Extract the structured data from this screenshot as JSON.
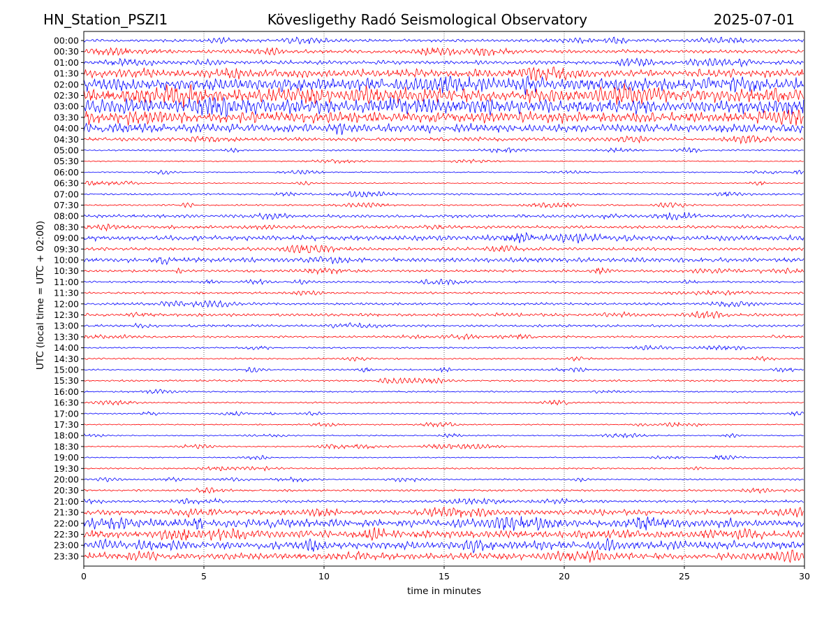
{
  "header": {
    "station": "HN_Station_PSZI1",
    "observatory": "Kövesligethy Radó Seismological Observatory",
    "date": "2025-07-01"
  },
  "chart_data": {
    "type": "line",
    "title": "Kövesligethy Radó Seismological Observatory",
    "xlabel": "time in minutes",
    "ylabel": "UTC (local time = UTC + 02:00)",
    "xlim": [
      0,
      30
    ],
    "x_ticks": [
      0,
      5,
      10,
      15,
      20,
      25,
      30
    ],
    "grid": "vertical dotted at x ticks",
    "colors": {
      "even_row": "#0000ff",
      "odd_row": "#ff0000"
    },
    "rows": [
      {
        "label": "00:00",
        "activity": 0.18
      },
      {
        "label": "00:30",
        "activity": 0.22
      },
      {
        "label": "01:00",
        "activity": 0.25
      },
      {
        "label": "01:30",
        "activity": 0.55
      },
      {
        "label": "02:00",
        "activity": 0.9
      },
      {
        "label": "02:30",
        "activity": 1.0
      },
      {
        "label": "03:00",
        "activity": 1.0
      },
      {
        "label": "03:30",
        "activity": 0.75
      },
      {
        "label": "04:00",
        "activity": 0.6
      },
      {
        "label": "04:30",
        "activity": 0.25
      },
      {
        "label": "05:00",
        "activity": 0.08
      },
      {
        "label": "05:30",
        "activity": 0.05
      },
      {
        "label": "06:00",
        "activity": 0.05
      },
      {
        "label": "06:30",
        "activity": 0.05
      },
      {
        "label": "07:00",
        "activity": 0.1
      },
      {
        "label": "07:30",
        "activity": 0.08
      },
      {
        "label": "08:00",
        "activity": 0.2
      },
      {
        "label": "08:30",
        "activity": 0.2
      },
      {
        "label": "09:00",
        "activity": 0.35
      },
      {
        "label": "09:30",
        "activity": 0.2
      },
      {
        "label": "10:00",
        "activity": 0.3
      },
      {
        "label": "10:30",
        "activity": 0.15
      },
      {
        "label": "11:00",
        "activity": 0.12
      },
      {
        "label": "11:30",
        "activity": 0.12
      },
      {
        "label": "12:00",
        "activity": 0.15
      },
      {
        "label": "12:30",
        "activity": 0.18
      },
      {
        "label": "13:00",
        "activity": 0.15
      },
      {
        "label": "13:30",
        "activity": 0.12
      },
      {
        "label": "14:00",
        "activity": 0.08
      },
      {
        "label": "14:30",
        "activity": 0.08
      },
      {
        "label": "15:00",
        "activity": 0.08
      },
      {
        "label": "15:30",
        "activity": 0.1
      },
      {
        "label": "16:00",
        "activity": 0.08
      },
      {
        "label": "16:30",
        "activity": 0.08
      },
      {
        "label": "17:00",
        "activity": 0.06
      },
      {
        "label": "17:30",
        "activity": 0.06
      },
      {
        "label": "18:00",
        "activity": 0.05
      },
      {
        "label": "18:30",
        "activity": 0.06
      },
      {
        "label": "19:00",
        "activity": 0.05
      },
      {
        "label": "19:30",
        "activity": 0.08
      },
      {
        "label": "20:00",
        "activity": 0.08
      },
      {
        "label": "20:30",
        "activity": 0.12
      },
      {
        "label": "21:00",
        "activity": 0.15
      },
      {
        "label": "21:30",
        "activity": 0.35
      },
      {
        "label": "22:00",
        "activity": 0.55
      },
      {
        "label": "22:30",
        "activity": 0.5
      },
      {
        "label": "23:00",
        "activity": 0.55
      },
      {
        "label": "23:30",
        "activity": 0.45
      }
    ]
  }
}
